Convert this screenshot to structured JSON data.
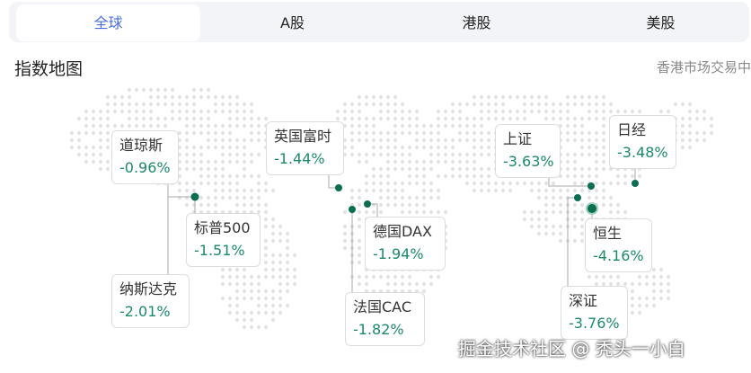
{
  "tabs": [
    {
      "label": "全球",
      "active": true
    },
    {
      "label": "A股"
    },
    {
      "label": "港股"
    },
    {
      "label": "美股"
    }
  ],
  "section": {
    "title": "指数地图",
    "status": "香港市场交易中"
  },
  "colors": {
    "accent": "#4a6ee0",
    "down": "#1b8a6b",
    "marker": "#0a6e50"
  },
  "indices": [
    {
      "name": "道琼斯",
      "change": "-0.96%"
    },
    {
      "name": "标普500",
      "change": "-1.51%"
    },
    {
      "name": "纳斯达克",
      "change": "-2.01%"
    },
    {
      "name": "英国富时",
      "change": "-1.44%"
    },
    {
      "name": "德国DAX",
      "change": "-1.94%"
    },
    {
      "name": "法国CAC",
      "change": "-1.82%"
    },
    {
      "name": "上证",
      "change": "-3.63%"
    },
    {
      "name": "日经",
      "change": "-3.48%"
    },
    {
      "name": "恒生",
      "change": "-4.16%"
    },
    {
      "name": "深证",
      "change": "-3.76%"
    }
  ],
  "watermark": "掘金技术社区 @ 秃头一小白"
}
